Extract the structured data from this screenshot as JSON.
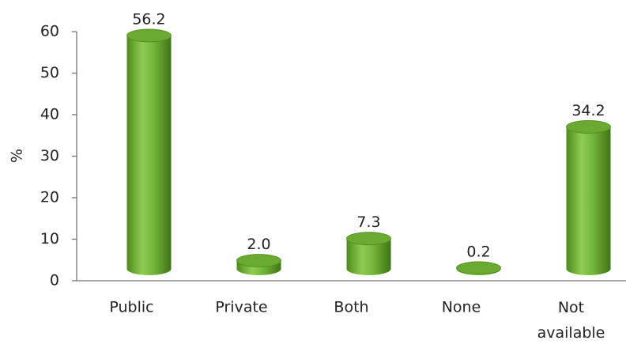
{
  "chart_data": {
    "type": "bar",
    "ylabel": "%",
    "categories": [
      "Public",
      "Private",
      "Both",
      "None",
      "Not available"
    ],
    "values": [
      56.2,
      2,
      7.3,
      0.2,
      34.2
    ],
    "value_labels": [
      "56.2",
      "2.0",
      "7.3",
      "0.2",
      "34.2"
    ],
    "color": "#5c9a26",
    "ylim": [
      0,
      60
    ],
    "yticks": [
      0,
      10,
      20,
      30,
      40,
      50,
      60
    ],
    "grid": false
  }
}
